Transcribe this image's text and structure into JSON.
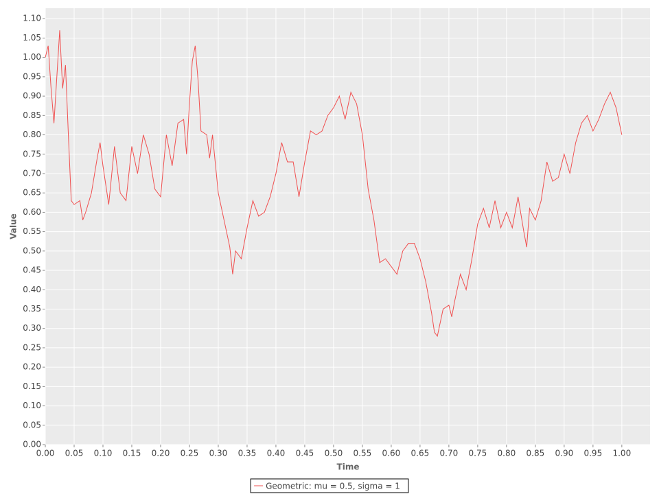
{
  "chart_data": {
    "type": "line",
    "x_label": "Time",
    "y_label": "Value",
    "x": [
      0,
      0.005,
      0.01,
      0.015,
      0.02,
      0.025,
      0.03,
      0.035,
      0.04,
      0.045,
      0.05,
      0.06,
      0.065,
      0.07,
      0.08,
      0.09,
      0.095,
      0.1,
      0.11,
      0.12,
      0.13,
      0.14,
      0.15,
      0.16,
      0.17,
      0.18,
      0.19,
      0.2,
      0.21,
      0.22,
      0.23,
      0.24,
      0.245,
      0.25,
      0.255,
      0.26,
      0.265,
      0.27,
      0.28,
      0.285,
      0.29,
      0.3,
      0.31,
      0.32,
      0.325,
      0.33,
      0.34,
      0.35,
      0.36,
      0.37,
      0.38,
      0.39,
      0.4,
      0.41,
      0.42,
      0.43,
      0.44,
      0.45,
      0.46,
      0.47,
      0.48,
      0.49,
      0.5,
      0.51,
      0.52,
      0.53,
      0.54,
      0.55,
      0.56,
      0.57,
      0.58,
      0.59,
      0.6,
      0.61,
      0.62,
      0.63,
      0.64,
      0.65,
      0.66,
      0.67,
      0.675,
      0.68,
      0.69,
      0.7,
      0.705,
      0.71,
      0.72,
      0.73,
      0.74,
      0.75,
      0.76,
      0.77,
      0.78,
      0.79,
      0.8,
      0.81,
      0.82,
      0.83,
      0.835,
      0.84,
      0.85,
      0.86,
      0.87,
      0.88,
      0.89,
      0.9,
      0.91,
      0.92,
      0.93,
      0.94,
      0.95,
      0.96,
      0.97,
      0.98,
      0.99,
      1.0
    ],
    "series": [
      {
        "name": "Geometric: mu = 0.5, sigma = 1",
        "color": "#f05050",
        "values": [
          1.0,
          1.03,
          0.92,
          0.83,
          0.95,
          1.07,
          0.92,
          0.98,
          0.8,
          0.63,
          0.62,
          0.63,
          0.58,
          0.6,
          0.65,
          0.74,
          0.78,
          0.72,
          0.62,
          0.77,
          0.65,
          0.63,
          0.77,
          0.7,
          0.8,
          0.75,
          0.66,
          0.64,
          0.8,
          0.72,
          0.83,
          0.84,
          0.75,
          0.88,
          0.99,
          1.03,
          0.94,
          0.81,
          0.8,
          0.74,
          0.8,
          0.65,
          0.58,
          0.51,
          0.44,
          0.5,
          0.48,
          0.56,
          0.63,
          0.59,
          0.6,
          0.64,
          0.7,
          0.78,
          0.73,
          0.73,
          0.64,
          0.73,
          0.81,
          0.8,
          0.81,
          0.85,
          0.87,
          0.9,
          0.84,
          0.91,
          0.88,
          0.8,
          0.66,
          0.58,
          0.47,
          0.48,
          0.46,
          0.44,
          0.5,
          0.52,
          0.52,
          0.48,
          0.42,
          0.34,
          0.29,
          0.28,
          0.35,
          0.36,
          0.33,
          0.37,
          0.44,
          0.4,
          0.48,
          0.57,
          0.61,
          0.56,
          0.63,
          0.56,
          0.6,
          0.56,
          0.64,
          0.55,
          0.51,
          0.61,
          0.58,
          0.63,
          0.73,
          0.68,
          0.69,
          0.75,
          0.7,
          0.78,
          0.83,
          0.85,
          0.81,
          0.84,
          0.88,
          0.91,
          0.87,
          0.8
        ]
      }
    ],
    "xlim": [
      0,
      1.049
    ],
    "ylim": [
      0,
      1.127
    ],
    "xticks": [
      {
        "value": 0,
        "label": "0.00"
      },
      {
        "value": 0.05,
        "label": "0.05"
      },
      {
        "value": 0.1,
        "label": "0.10"
      },
      {
        "value": 0.15,
        "label": "0.15"
      },
      {
        "value": 0.2,
        "label": "0.20"
      },
      {
        "value": 0.25,
        "label": "0.25"
      },
      {
        "value": 0.3,
        "label": "0.30"
      },
      {
        "value": 0.35,
        "label": "0.35"
      },
      {
        "value": 0.4,
        "label": "0.40"
      },
      {
        "value": 0.45,
        "label": "0.45"
      },
      {
        "value": 0.5,
        "label": "0.50"
      },
      {
        "value": 0.55,
        "label": "0.55"
      },
      {
        "value": 0.6,
        "label": "0.60"
      },
      {
        "value": 0.65,
        "label": "0.65"
      },
      {
        "value": 0.7,
        "label": "0.70"
      },
      {
        "value": 0.75,
        "label": "0.75"
      },
      {
        "value": 0.8,
        "label": "0.80"
      },
      {
        "value": 0.85,
        "label": "0.85"
      },
      {
        "value": 0.9,
        "label": "0.90"
      },
      {
        "value": 0.95,
        "label": "0.95"
      },
      {
        "value": 1,
        "label": "1.00"
      }
    ],
    "yticks": [
      {
        "value": 0,
        "label": "0.00"
      },
      {
        "value": 0.05,
        "label": "0.05"
      },
      {
        "value": 0.1,
        "label": "0.10"
      },
      {
        "value": 0.15,
        "label": "0.15"
      },
      {
        "value": 0.2,
        "label": "0.20"
      },
      {
        "value": 0.25,
        "label": "0.25"
      },
      {
        "value": 0.3,
        "label": "0.30"
      },
      {
        "value": 0.35,
        "label": "0.35"
      },
      {
        "value": 0.4,
        "label": "0.40"
      },
      {
        "value": 0.45,
        "label": "0.45"
      },
      {
        "value": 0.5,
        "label": "0.50"
      },
      {
        "value": 0.55,
        "label": "0.55"
      },
      {
        "value": 0.6,
        "label": "0.60"
      },
      {
        "value": 0.65,
        "label": "0.65"
      },
      {
        "value": 0.7,
        "label": "0.70"
      },
      {
        "value": 0.75,
        "label": "0.75"
      },
      {
        "value": 0.8,
        "label": "0.80"
      },
      {
        "value": 0.85,
        "label": "0.85"
      },
      {
        "value": 0.9,
        "label": "0.90"
      },
      {
        "value": 0.95,
        "label": "0.95"
      },
      {
        "value": 1,
        "label": "1.00"
      },
      {
        "value": 1.05,
        "label": "1.05"
      },
      {
        "value": 1.1,
        "label": "1.10"
      }
    ],
    "grid": true,
    "legend": "bottom"
  }
}
